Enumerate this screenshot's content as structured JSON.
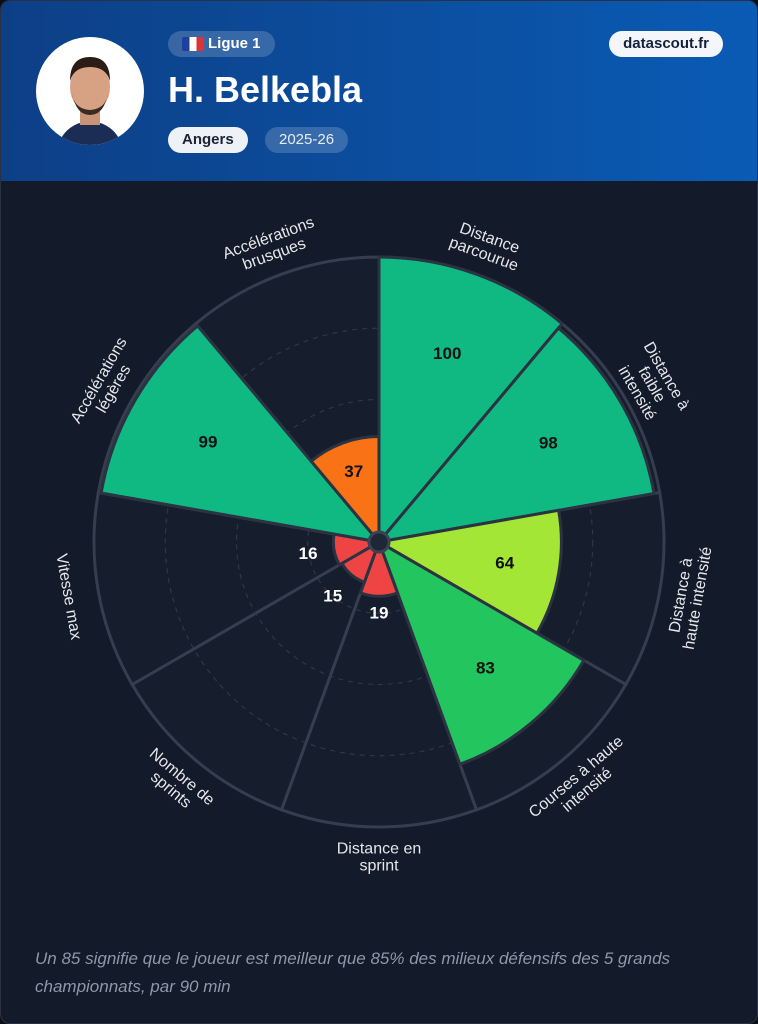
{
  "header": {
    "league": "Ligue 1",
    "player": "H. Belkebla",
    "team": "Angers",
    "season": "2025-26",
    "site": "datascout.fr"
  },
  "chart_data": {
    "type": "pizza",
    "categories": [
      "Distance parcourue",
      "Distance à faible intensité",
      "Distance à haute intensité",
      "Courses à haute intensité",
      "Distance en sprint",
      "Nombre de sprints",
      "Vitesse max",
      "Accélérations légères",
      "Accélérations brusques"
    ],
    "values": [
      100,
      98,
      64,
      83,
      19,
      15,
      16,
      99,
      37
    ],
    "colors": [
      "#10b981",
      "#10b981",
      "#a3e635",
      "#22c55e",
      "#ef4444",
      "#ef4444",
      "#ef4444",
      "#10b981",
      "#f97316"
    ],
    "rlim": [
      0,
      100
    ],
    "rticks": [
      25,
      50,
      75
    ]
  },
  "footer": "Un 85 signifie que le joueur est meilleur que 85% des milieux défensifs des 5 grands championnats, par 90 min"
}
